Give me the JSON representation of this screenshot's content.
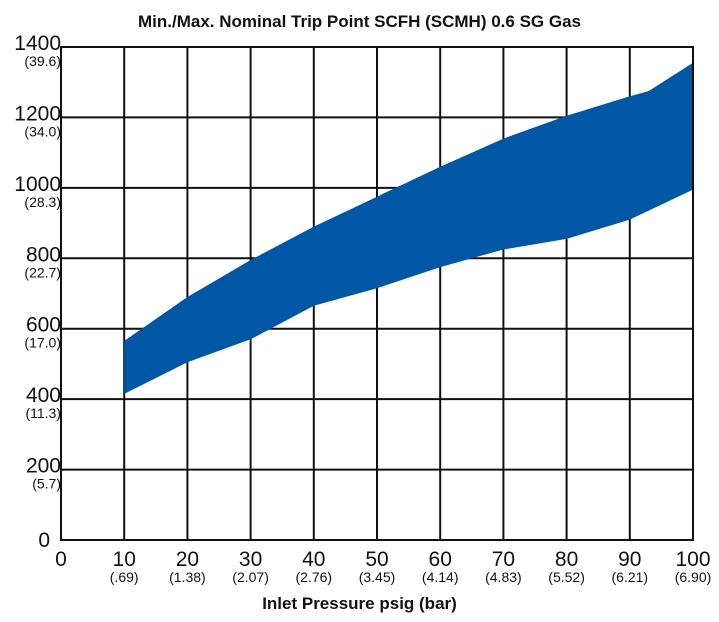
{
  "chart_data": {
    "type": "area",
    "title": "Min./Max. Nominal Trip Point SCFH (SCMH) 0.6 SG Gas",
    "xlabel": "Inlet Pressure psig (bar)",
    "ylabel": "",
    "xlim": [
      0,
      100
    ],
    "ylim": [
      0,
      1400
    ],
    "grid": true,
    "band_color": "#0057a6",
    "x_ticks": [
      {
        "value": 0,
        "label": "0",
        "sublabel": ""
      },
      {
        "value": 10,
        "label": "10",
        "sublabel": "(.69)"
      },
      {
        "value": 20,
        "label": "20",
        "sublabel": "(1.38)"
      },
      {
        "value": 30,
        "label": "30",
        "sublabel": "(2.07)"
      },
      {
        "value": 40,
        "label": "40",
        "sublabel": "(2.76)"
      },
      {
        "value": 50,
        "label": "50",
        "sublabel": "(3.45)"
      },
      {
        "value": 60,
        "label": "60",
        "sublabel": "(4.14)"
      },
      {
        "value": 70,
        "label": "70",
        "sublabel": "(4.83)"
      },
      {
        "value": 80,
        "label": "80",
        "sublabel": "(5.52)"
      },
      {
        "value": 90,
        "label": "90",
        "sublabel": "(6.21)"
      },
      {
        "value": 100,
        "label": "100",
        "sublabel": "(6.90)"
      }
    ],
    "y_ticks": [
      {
        "value": 0,
        "label": "0",
        "sublabel": ""
      },
      {
        "value": 200,
        "label": "200",
        "sublabel": "(5.7)"
      },
      {
        "value": 400,
        "label": "400",
        "sublabel": "(11.3)"
      },
      {
        "value": 600,
        "label": "600",
        "sublabel": "(17.0)"
      },
      {
        "value": 800,
        "label": "800",
        "sublabel": "(22.7)"
      },
      {
        "value": 1000,
        "label": "1000",
        "sublabel": "(28.3)"
      },
      {
        "value": 1200,
        "label": "1200",
        "sublabel": "(34.0)"
      },
      {
        "value": 1400,
        "label": "1400",
        "sublabel": "(39.6)"
      }
    ],
    "series": [
      {
        "x": [
          10,
          20,
          30,
          40,
          50,
          60,
          70,
          80,
          90,
          93,
          100
        ],
        "values": [
          565,
          690,
          795,
          890,
          975,
          1060,
          1140,
          1205,
          1260,
          1275,
          1355
        ]
      },
      {
        "x": [
          10,
          20,
          30,
          40,
          50,
          60,
          70,
          80,
          90,
          100
        ],
        "values": [
          415,
          505,
          570,
          665,
          715,
          775,
          825,
          855,
          910,
          995
        ]
      }
    ]
  }
}
